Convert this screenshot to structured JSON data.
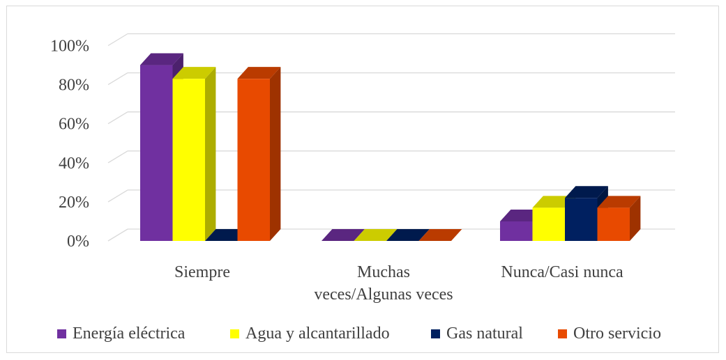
{
  "chart_data": {
    "type": "bar",
    "categories": [
      "Siempre",
      "Muchas veces/Algunas veces",
      "Nunca/Casi nunca"
    ],
    "category_lines": [
      [
        "Siempre"
      ],
      [
        "Muchas",
        "veces/Algunas veces"
      ],
      [
        "Nunca/Casi nunca"
      ]
    ],
    "series": [
      {
        "name": "Energía eléctrica",
        "values": [
          90,
          0,
          10
        ],
        "color": "#7030a0"
      },
      {
        "name": "Agua y alcantarillado",
        "values": [
          83,
          0,
          17
        ],
        "color": "#ffff00"
      },
      {
        "name": "Gas natural",
        "values": [
          0,
          0,
          22
        ],
        "color": "#002060"
      },
      {
        "name": "Otro servicio",
        "values": [
          83,
          0,
          17
        ],
        "color": "#e84a00"
      }
    ],
    "yticks": [
      "0%",
      "20%",
      "40%",
      "60%",
      "80%",
      "100%"
    ],
    "ylim": [
      0,
      100
    ],
    "grid": true,
    "legend_position": "bottom",
    "style": "3d-clustered-column"
  }
}
